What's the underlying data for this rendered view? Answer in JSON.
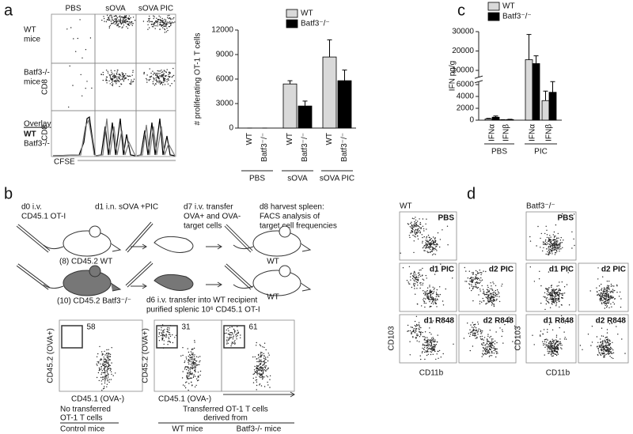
{
  "chart_data": [
    {
      "type": "bar",
      "ylabel": "# proliferating OT-1 T cells",
      "categories": [
        "PBS",
        "sOVA",
        "sOVA PIC"
      ],
      "series": [
        {
          "name": "WT",
          "color": "#d9d9d9",
          "values": [
            0,
            5400,
            8700
          ],
          "errors": [
            0,
            400,
            2100
          ]
        },
        {
          "name": "Batf3⁻/⁻",
          "color": "#000000",
          "values": [
            0,
            2700,
            5800
          ],
          "errors": [
            0,
            600,
            1300
          ]
        }
      ],
      "ylim": [
        0,
        12000
      ],
      "yticks": [
        0,
        3000,
        6000,
        9000,
        12000
      ]
    },
    {
      "type": "bar",
      "ylabel": "IFN pg/g",
      "categories": [
        "IFNα",
        "IFNβ",
        "IFNα",
        "IFNβ"
      ],
      "groups": [
        "PBS",
        "PIC"
      ],
      "series": [
        {
          "name": "WT",
          "color": "#d9d9d9",
          "values": [
            200,
            50,
            15500,
            3300
          ],
          "errors": [
            100,
            30,
            13000,
            1600
          ]
        },
        {
          "name": "Batf3⁻/⁻",
          "color": "#000000",
          "values": [
            500,
            100,
            13500,
            4700
          ],
          "errors": [
            200,
            50,
            4000,
            1800
          ]
        }
      ],
      "y_segments": [
        {
          "ylim": [
            0,
            6500
          ],
          "yticks": [
            0,
            2000,
            4000,
            6000
          ]
        },
        {
          "ylim": [
            6500,
            30000
          ],
          "yticks": [
            10000,
            20000,
            30000
          ]
        }
      ]
    }
  ],
  "panel_letters": [
    "a",
    "b",
    "c",
    "d"
  ],
  "a_flow": {
    "columns": [
      "PBS",
      "sOVA",
      "sOVA PIC"
    ],
    "rows": [
      [
        "WT",
        "mice"
      ],
      [
        "Batf3-/-",
        "mice"
      ]
    ],
    "y_label": "CD8",
    "overlay": {
      "title": "Overlay",
      "wt": "WT",
      "ko": "Batf3-/-"
    },
    "x_label": "CFSE"
  },
  "b": {
    "steps": [
      [
        "d0 i.v.",
        "CD45.1 OT-I"
      ],
      [
        "d1 i.n. sOVA +PIC"
      ],
      [
        "d7 i.v. transfer",
        "OVA+ and OVA-",
        "target cells"
      ],
      [
        "d8 harvest spleen:",
        "FACS analysis of",
        "target cell frequencies"
      ]
    ],
    "donors": [
      "(8) CD45.2 WT",
      "(10) CD45.2 Batf3⁻/⁻"
    ],
    "recipients": [
      "WT",
      "WT"
    ],
    "transfer": [
      "d6 i.v. transfer into WT recipient",
      "purified splenic 10⁶ CD45.1 OT-I"
    ],
    "gates": [
      "58",
      "31",
      "61"
    ],
    "y_label": "CD45.2 (OVA+)",
    "x_label": "CD45.1 (OVA-)",
    "control": [
      "No transferred",
      "OT-1 T cells",
      "Control mice"
    ],
    "transferred": [
      "Transferred OT-1 T cells",
      "derived from"
    ],
    "groups": [
      "WT mice",
      "Batf3-/- mice"
    ]
  },
  "d": {
    "groups": [
      {
        "title": "WT",
        "plots": [
          "PBS",
          "d1 PIC",
          "d2 PIC",
          "d1 R848",
          "d2 R848"
        ]
      },
      {
        "title": "Batf3⁻/⁻",
        "plots": [
          "PBS",
          "d1 PIC",
          "d2 PIC",
          "d1 R848",
          "d2 R848"
        ]
      }
    ],
    "y_label": "CD103",
    "x_label": "CD11b"
  }
}
